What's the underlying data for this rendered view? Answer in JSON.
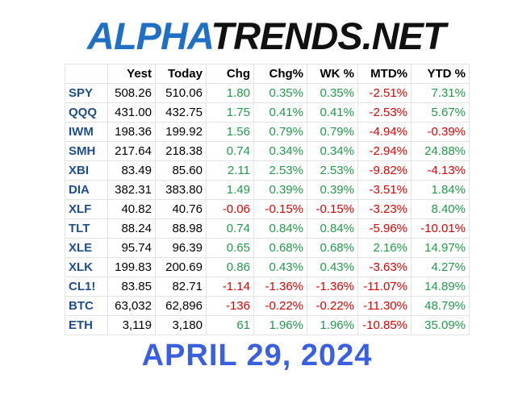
{
  "logo": {
    "part1": "ALPHA",
    "part2": "TRENDS.NET"
  },
  "table": {
    "headers": [
      "Yest",
      "Today",
      "Chg",
      "Chg%",
      "WK %",
      "MTD%",
      "YTD %"
    ],
    "rows": [
      [
        "SPY",
        "508.26",
        "510.06",
        "1.80",
        "0.35%",
        "0.35%",
        "-2.51%",
        "7.31%"
      ],
      [
        "QQQ",
        "431.00",
        "432.75",
        "1.75",
        "0.41%",
        "0.41%",
        "-2.53%",
        "5.67%"
      ],
      [
        "IWM",
        "198.36",
        "199.92",
        "1.56",
        "0.79%",
        "0.79%",
        "-4.94%",
        "-0.39%"
      ],
      [
        "SMH",
        "217.64",
        "218.38",
        "0.74",
        "0.34%",
        "0.34%",
        "-2.94%",
        "24.88%"
      ],
      [
        "XBI",
        "83.49",
        "85.60",
        "2.11",
        "2.53%",
        "2.53%",
        "-9.82%",
        "-4.13%"
      ],
      [
        "DIA",
        "382.31",
        "383.80",
        "1.49",
        "0.39%",
        "0.39%",
        "-3.51%",
        "1.84%"
      ],
      [
        "XLF",
        "40.82",
        "40.76",
        "-0.06",
        "-0.15%",
        "-0.15%",
        "-3.23%",
        "8.40%"
      ],
      [
        "TLT",
        "88.24",
        "88.98",
        "0.74",
        "0.84%",
        "0.84%",
        "-5.96%",
        "-10.01%"
      ],
      [
        "XLE",
        "95.74",
        "96.39",
        "0.65",
        "0.68%",
        "0.68%",
        "2.16%",
        "14.97%"
      ],
      [
        "XLK",
        "199.83",
        "200.69",
        "0.86",
        "0.43%",
        "0.43%",
        "-3.63%",
        "4.27%"
      ],
      [
        "CL1!",
        "83.85",
        "82.71",
        "-1.14",
        "-1.36%",
        "-1.36%",
        "-11.07%",
        "14.89%"
      ],
      [
        "BTC",
        "63,032",
        "62,896",
        "-136",
        "-0.22%",
        "-0.22%",
        "-11.30%",
        "48.79%"
      ],
      [
        "ETH",
        "3,119",
        "3,180",
        "61",
        "1.96%",
        "1.96%",
        "-10.85%",
        "35.09%"
      ]
    ]
  },
  "date": "APRIL 29, 2024"
}
